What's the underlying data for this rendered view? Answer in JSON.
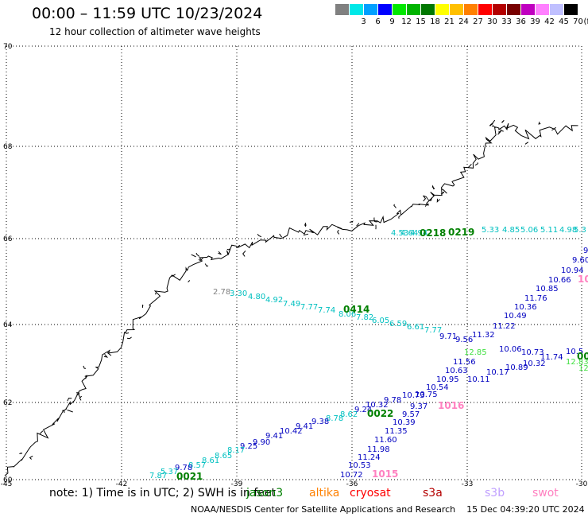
{
  "header": {
    "title": "00:00 – 11:59 UTC 10/23/2024",
    "subtitle": "12 hour collection of altimeter wave heights"
  },
  "legend": {
    "unit": "(ft)",
    "levels": [
      {
        "label": "",
        "color": "#808080"
      },
      {
        "label": "3",
        "color": "#00e8e8"
      },
      {
        "label": "6",
        "color": "#00a0ff"
      },
      {
        "label": "9",
        "color": "#0000ff"
      },
      {
        "label": "12",
        "color": "#00e800"
      },
      {
        "label": "15",
        "color": "#00b400"
      },
      {
        "label": "18",
        "color": "#007800"
      },
      {
        "label": "21",
        "color": "#ffff00"
      },
      {
        "label": "24",
        "color": "#ffc000"
      },
      {
        "label": "27",
        "color": "#ff8000"
      },
      {
        "label": "30",
        "color": "#ff0000"
      },
      {
        "label": "33",
        "color": "#b40000"
      },
      {
        "label": "36",
        "color": "#780000"
      },
      {
        "label": "39",
        "color": "#c000c0"
      },
      {
        "label": "42",
        "color": "#ff80ff"
      },
      {
        "label": "45",
        "color": "#c0c0ff"
      },
      {
        "label": "70",
        "color": "#000000"
      }
    ]
  },
  "axes": {
    "lon_labels": [
      "-45",
      "-42",
      "-39",
      "-36",
      "-33",
      "-30"
    ],
    "lat_labels": [
      "70",
      "68",
      "66",
      "64",
      "62",
      "60"
    ]
  },
  "map_region": {
    "lon_range": [
      -45,
      -30
    ],
    "lat_range": [
      60,
      70
    ]
  },
  "passes": [
    {
      "label": "0218",
      "color": "#008000"
    },
    {
      "label": "0219",
      "color": "#008000"
    },
    {
      "label": "0414",
      "color": "#008000"
    },
    {
      "label": "0022",
      "color": "#008000"
    },
    {
      "label": "0021",
      "color": "#008000"
    },
    {
      "label": "1016",
      "color": "#ff80c0"
    },
    {
      "label": "1015",
      "color": "#ff80c0"
    },
    {
      "label": "10",
      "color": "#ff80c0"
    },
    {
      "label": "00",
      "color": "#008000"
    }
  ],
  "track_values": [
    {
      "v": "4.53",
      "c": "#00c0c0"
    },
    {
      "v": "4.64",
      "c": "#00c0c0"
    },
    {
      "v": "4.94",
      "c": "#00c0c0"
    },
    {
      "v": "5.33",
      "c": "#00c0c0"
    },
    {
      "v": "4.85",
      "c": "#00c0c0"
    },
    {
      "v": "5.06",
      "c": "#00c0c0"
    },
    {
      "v": "5.11",
      "c": "#00c0c0"
    },
    {
      "v": "4.98",
      "c": "#00c0c0"
    },
    {
      "v": "5.3",
      "c": "#00c0c0"
    },
    {
      "v": "2.78",
      "c": "#808080"
    },
    {
      "v": "3.30",
      "c": "#00c0c0"
    },
    {
      "v": "4.80",
      "c": "#00c0c0"
    },
    {
      "v": "4.92",
      "c": "#00c0c0"
    },
    {
      "v": "7.49",
      "c": "#00c0c0"
    },
    {
      "v": "7.77",
      "c": "#00c0c0"
    },
    {
      "v": "7.74",
      "c": "#00c0c0"
    },
    {
      "v": "8.06",
      "c": "#00c0c0"
    },
    {
      "v": "7.82",
      "c": "#00c0c0"
    },
    {
      "v": "6.05",
      "c": "#00c0c0"
    },
    {
      "v": "6.59",
      "c": "#00c0c0"
    },
    {
      "v": "6.61",
      "c": "#00c0c0"
    },
    {
      "v": "7.77",
      "c": "#00c0c0"
    },
    {
      "v": "9.71",
      "c": "#0000c0"
    },
    {
      "v": "9.56",
      "c": "#0000c0"
    },
    {
      "v": "11.32",
      "c": "#0000c0"
    },
    {
      "v": "11.22",
      "c": "#0000c0"
    },
    {
      "v": "10.49",
      "c": "#0000c0"
    },
    {
      "v": "10.36",
      "c": "#0000c0"
    },
    {
      "v": "11.76",
      "c": "#0000c0"
    },
    {
      "v": "10.85",
      "c": "#0000c0"
    },
    {
      "v": "10.66",
      "c": "#0000c0"
    },
    {
      "v": "10.94",
      "c": "#0000c0"
    },
    {
      "v": "9.60",
      "c": "#0000c0"
    },
    {
      "v": "9",
      "c": "#0000c0"
    },
    {
      "v": "12.85",
      "c": "#40e040"
    },
    {
      "v": "10.06",
      "c": "#0000c0"
    },
    {
      "v": "10.73",
      "c": "#0000c0"
    },
    {
      "v": "11.74",
      "c": "#0000c0"
    },
    {
      "v": "10.5",
      "c": "#0000c0"
    },
    {
      "v": "12.83",
      "c": "#40e040"
    },
    {
      "v": "12",
      "c": "#40e040"
    },
    {
      "v": "11.56",
      "c": "#0000c0"
    },
    {
      "v": "10.63",
      "c": "#0000c0"
    },
    {
      "v": "10.95",
      "c": "#0000c0"
    },
    {
      "v": "10.54",
      "c": "#0000c0"
    },
    {
      "v": "10.75",
      "c": "#0000c0"
    },
    {
      "v": "10.73",
      "c": "#0000c0"
    },
    {
      "v": "9.78",
      "c": "#0000c0"
    },
    {
      "v": "9.37",
      "c": "#0000c0"
    },
    {
      "v": "9.57",
      "c": "#0000c0"
    },
    {
      "v": "10.39",
      "c": "#0000c0"
    },
    {
      "v": "11.35",
      "c": "#0000c0"
    },
    {
      "v": "11.60",
      "c": "#0000c0"
    },
    {
      "v": "11.98",
      "c": "#0000c0"
    },
    {
      "v": "11.24",
      "c": "#0000c0"
    },
    {
      "v": "10.53",
      "c": "#0000c0"
    },
    {
      "v": "10.72",
      "c": "#0000c0"
    },
    {
      "v": "10.11",
      "c": "#0000c0"
    },
    {
      "v": "10.17",
      "c": "#0000c0"
    },
    {
      "v": "10.89",
      "c": "#0000c0"
    },
    {
      "v": "10.32",
      "c": "#0000c0"
    },
    {
      "v": "10.32",
      "c": "#0000c0"
    },
    {
      "v": "9.24",
      "c": "#0000c0"
    },
    {
      "v": "8.62",
      "c": "#00c0c0"
    },
    {
      "v": "8.78",
      "c": "#00c0c0"
    },
    {
      "v": "9.38",
      "c": "#0000c0"
    },
    {
      "v": "9.41",
      "c": "#0000c0"
    },
    {
      "v": "10.42",
      "c": "#0000c0"
    },
    {
      "v": "9.41",
      "c": "#0000c0"
    },
    {
      "v": "9.90",
      "c": "#0000c0"
    },
    {
      "v": "9.25",
      "c": "#0000c0"
    },
    {
      "v": "8.17",
      "c": "#00c0c0"
    },
    {
      "v": "8.65",
      "c": "#00c0c0"
    },
    {
      "v": "8.61",
      "c": "#00c0c0"
    },
    {
      "v": "8.57",
      "c": "#00c0c0"
    },
    {
      "v": "9.78",
      "c": "#0000c0"
    },
    {
      "v": "5.37",
      "c": "#00c0c0"
    },
    {
      "v": "7.87",
      "c": "#00c0c0"
    }
  ],
  "note": {
    "prefix": "note:  1) Time is in UTC; 2) SWH is in feet",
    "missions": [
      {
        "name": "jason3",
        "color": "#008000"
      },
      {
        "name": "altika",
        "color": "#ff8000"
      },
      {
        "name": "cryosat",
        "color": "#ff0000"
      },
      {
        "name": "s3a",
        "color": "#b40000"
      },
      {
        "name": "s3b",
        "color": "#c0a0ff"
      },
      {
        "name": "swot",
        "color": "#ff80c0"
      }
    ]
  },
  "footer": {
    "credit": "NOAA/NESDIS Center for Satellite Applications and Research",
    "timestamp": "15 Dec 04:39:20 UTC 2024"
  }
}
